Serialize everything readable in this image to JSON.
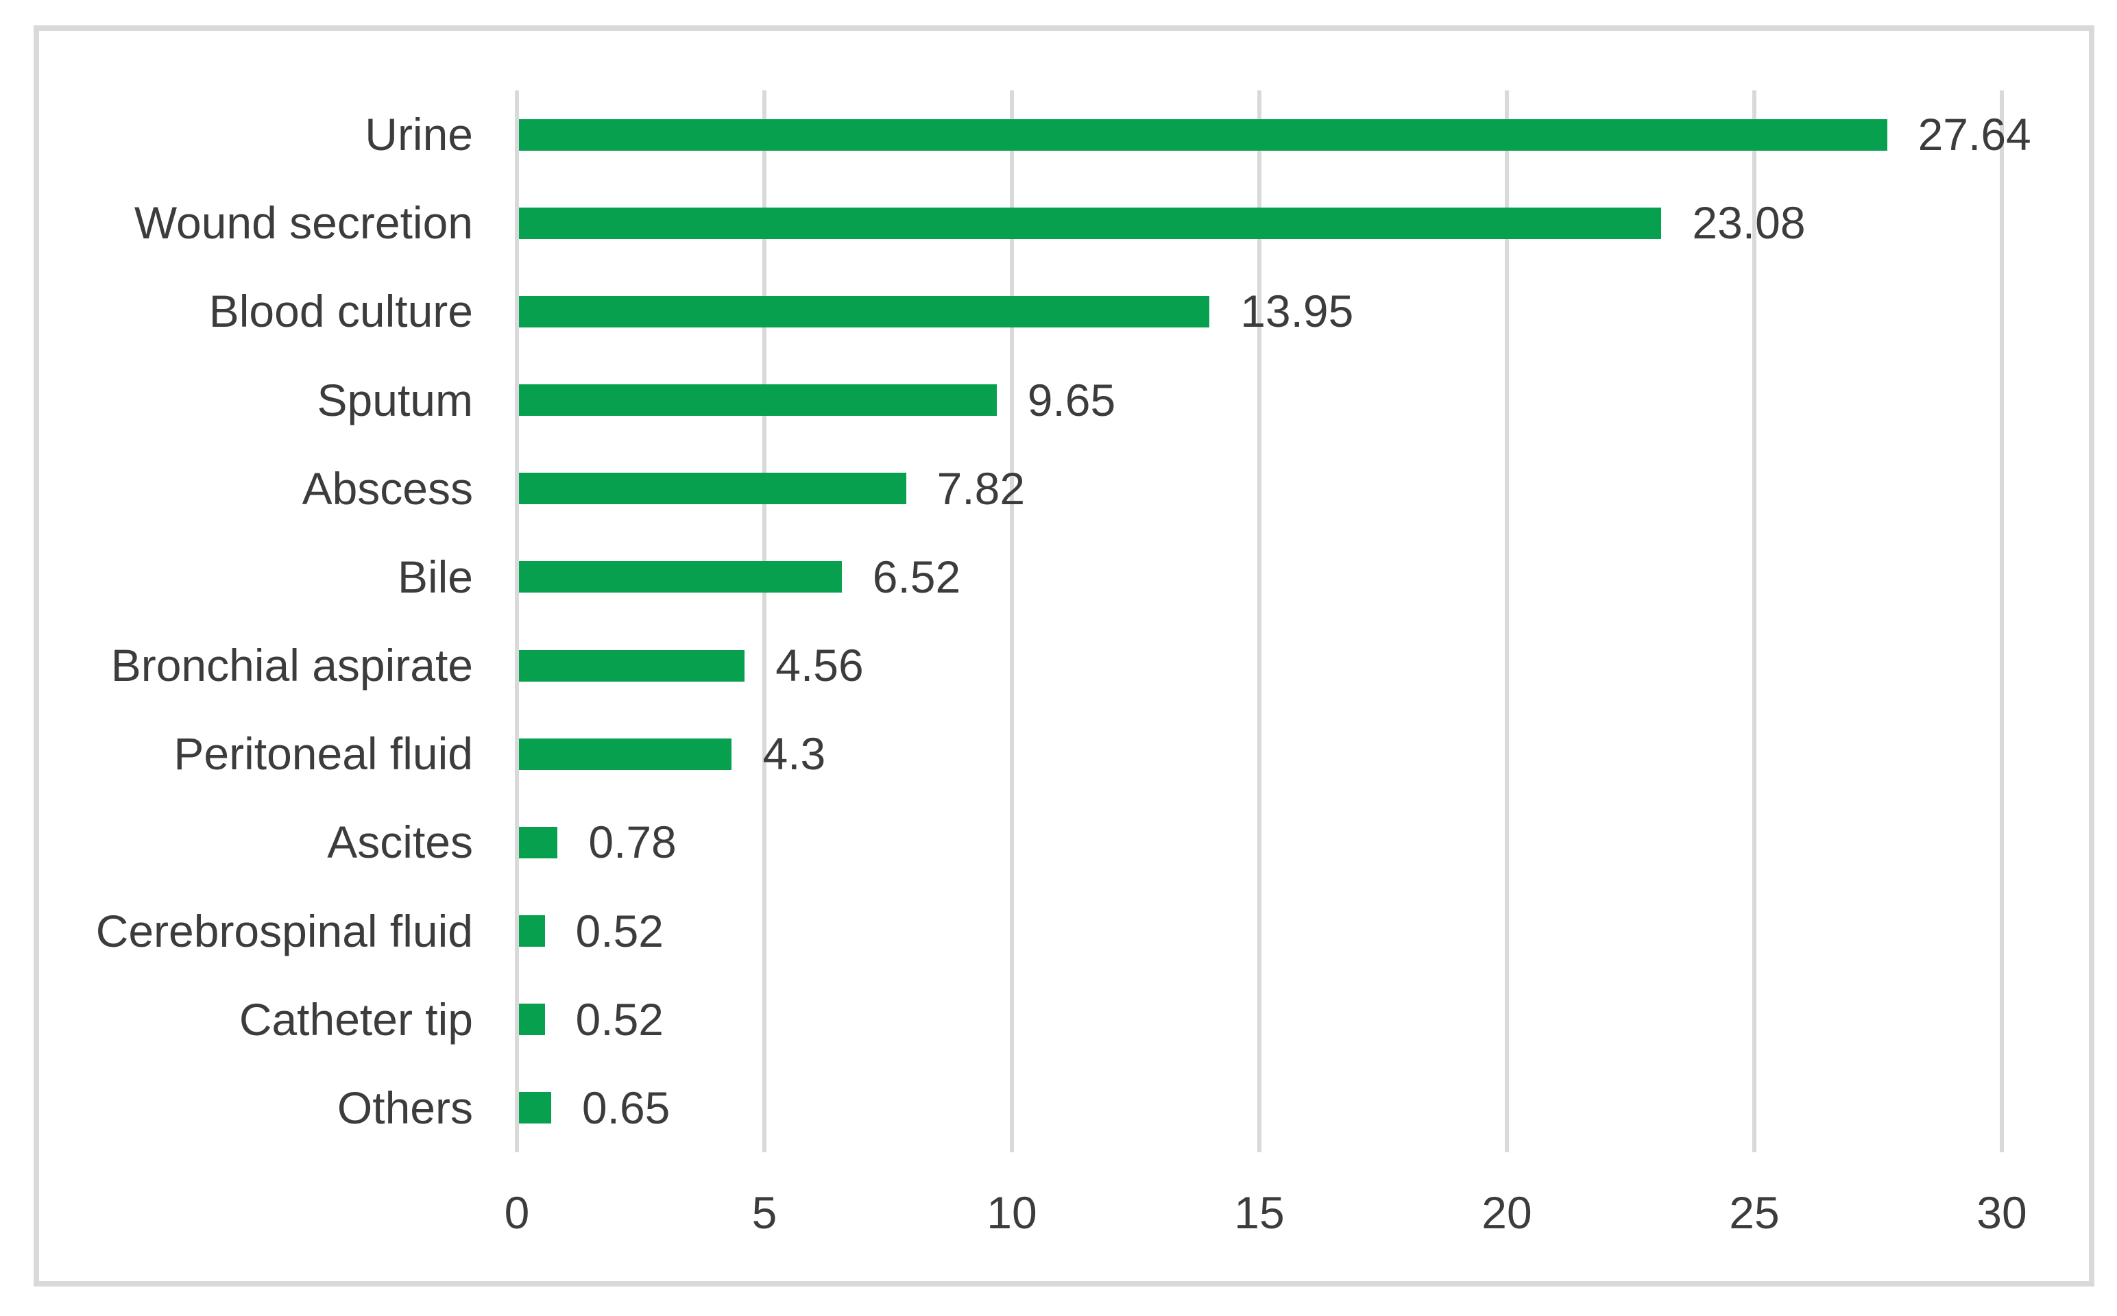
{
  "chart_data": {
    "type": "bar",
    "orientation": "horizontal",
    "title": "",
    "xlabel": "",
    "ylabel": "",
    "categories": [
      "Urine",
      "Wound secretion",
      "Blood culture",
      "Sputum",
      "Abscess",
      "Bile",
      "Bronchial aspirate",
      "Peritoneal fluid",
      "Ascites",
      "Cerebrospinal fluid",
      "Catheter tip",
      "Others"
    ],
    "values": [
      27.64,
      23.08,
      13.95,
      9.65,
      7.82,
      6.52,
      4.56,
      4.3,
      0.78,
      0.52,
      0.52,
      0.65
    ],
    "value_labels": [
      "27.64",
      "23.08",
      "13.95",
      "9.65",
      "7.82",
      "6.52",
      "4.56",
      "4.3",
      "0.78",
      "0.52",
      "0.52",
      "0.65"
    ],
    "xlim": [
      0,
      30
    ],
    "xticks": [
      "0",
      "5",
      "10",
      "15",
      "20",
      "25",
      "30"
    ],
    "grid": true,
    "legend": "none",
    "colors": {
      "bar": "#07A04F",
      "gridline": "#D9D9D9",
      "frame_border": "#D9D9D9",
      "text": "#3C3C3C",
      "background": "#FFFFFF"
    }
  }
}
